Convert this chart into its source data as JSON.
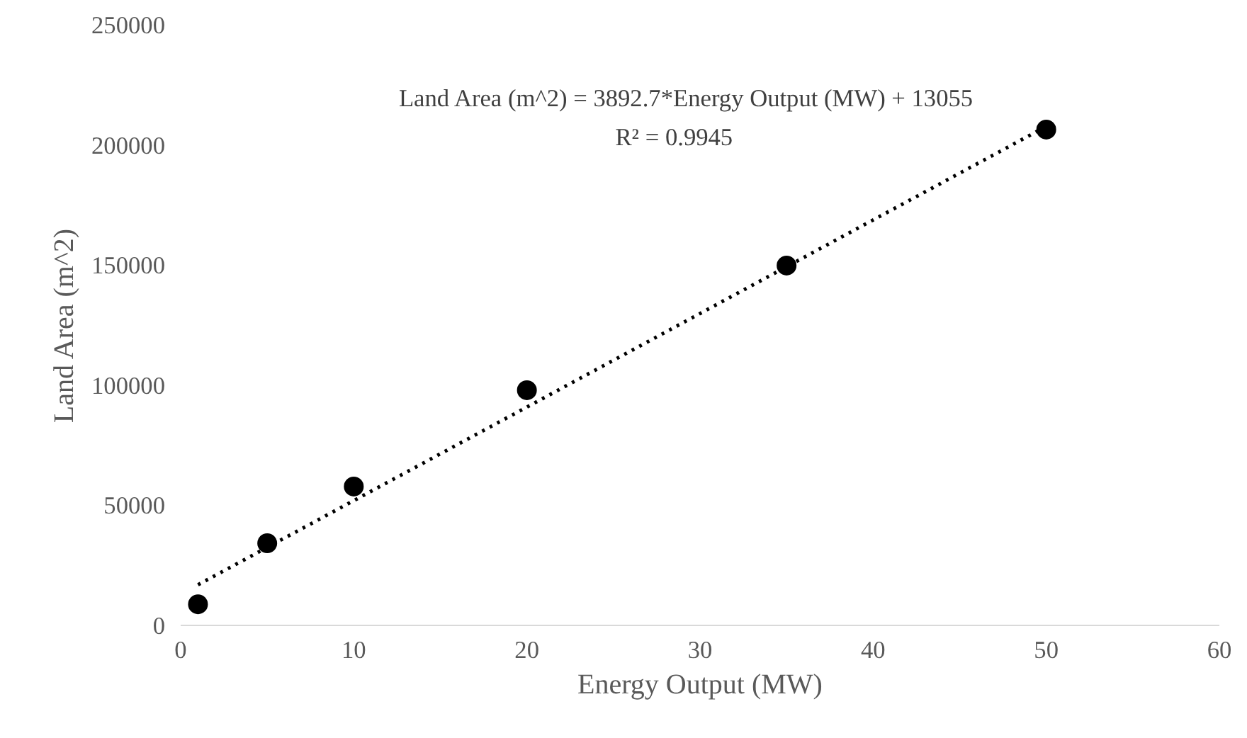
{
  "chart_data": {
    "type": "scatter",
    "xlabel": "Energy Output (MW)",
    "ylabel": "Land Area (m^2)",
    "x": [
      1,
      5,
      10,
      20,
      35,
      50
    ],
    "series": [
      {
        "color": "#000000",
        "marker": "circle",
        "values": [
          8800,
          34200,
          57800,
          97900,
          149800,
          206400
        ]
      },
      {
        "type": "line",
        "color": "#000000",
        "line_style": "dotted",
        "marker": "none",
        "x": [
          1,
          50
        ],
        "values": [
          16900,
          207700
        ]
      }
    ],
    "annotations": [
      "Land Area (m^2) = 3892.7*Energy  Output (MW) + 13055",
      "R² = 0.9945"
    ],
    "xlim": [
      0,
      60
    ],
    "xticks": [
      0,
      10,
      20,
      30,
      40,
      50,
      60
    ],
    "ylim": [
      0,
      250000
    ],
    "yticks": [
      0,
      50000,
      100000,
      150000,
      200000,
      250000
    ],
    "grid": false
  }
}
